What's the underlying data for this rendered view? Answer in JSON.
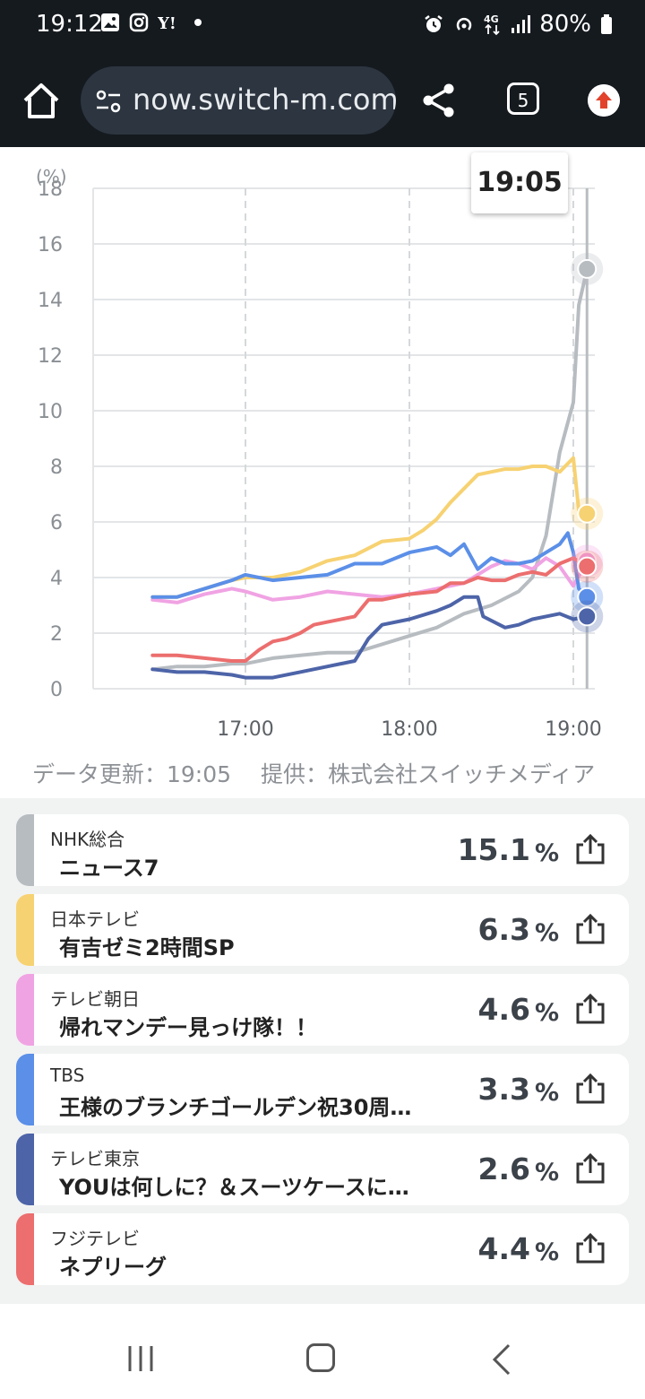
{
  "status_bar": {
    "time": "19:12",
    "left_icons": [
      "gallery-icon",
      "instagram-icon",
      "yahoo-icon",
      "dot-icon"
    ],
    "right_icons": [
      "alarm-icon",
      "hotspot-icon",
      "4g-icon",
      "signal-icon"
    ],
    "battery": "80%"
  },
  "browser": {
    "url": "now.switch-m.com",
    "tab_count": "5"
  },
  "chart": {
    "tooltip_time": "19:05",
    "y_unit": "(%)",
    "y_ticks": [
      "18",
      "16",
      "14",
      "12",
      "10",
      "8",
      "6",
      "4",
      "2",
      "0"
    ],
    "x_ticks": [
      "17:00",
      "18:00",
      "19:00"
    ]
  },
  "chart_data": {
    "type": "line",
    "y_unit": "(%)",
    "ylim": [
      0,
      18
    ],
    "x_ticks": [
      "17:00",
      "18:00",
      "19:00"
    ],
    "grid": true,
    "note_time": "19:05",
    "series": [
      {
        "name": "NHK総合",
        "color": "#b7bcc1",
        "points": [
          [
            "16:26",
            0.7
          ],
          [
            "16:35",
            0.8
          ],
          [
            "16:45",
            0.8
          ],
          [
            "16:55",
            0.9
          ],
          [
            "17:00",
            0.9
          ],
          [
            "17:10",
            1.1
          ],
          [
            "17:20",
            1.2
          ],
          [
            "17:30",
            1.3
          ],
          [
            "17:40",
            1.3
          ],
          [
            "17:50",
            1.6
          ],
          [
            "18:00",
            1.9
          ],
          [
            "18:10",
            2.2
          ],
          [
            "18:20",
            2.7
          ],
          [
            "18:30",
            3.0
          ],
          [
            "18:40",
            3.5
          ],
          [
            "18:45",
            4.0
          ],
          [
            "18:50",
            5.5
          ],
          [
            "18:55",
            8.5
          ],
          [
            "19:00",
            10.3
          ],
          [
            "19:02",
            13.8
          ],
          [
            "19:05",
            15.1
          ]
        ]
      },
      {
        "name": "日本テレビ",
        "color": "#f7d272",
        "points": [
          [
            "16:26",
            3.3
          ],
          [
            "16:35",
            3.3
          ],
          [
            "16:45",
            3.6
          ],
          [
            "16:55",
            3.9
          ],
          [
            "17:00",
            4.0
          ],
          [
            "17:10",
            4.0
          ],
          [
            "17:20",
            4.2
          ],
          [
            "17:30",
            4.6
          ],
          [
            "17:40",
            4.8
          ],
          [
            "17:50",
            5.3
          ],
          [
            "18:00",
            5.4
          ],
          [
            "18:05",
            5.7
          ],
          [
            "18:10",
            6.1
          ],
          [
            "18:15",
            6.7
          ],
          [
            "18:20",
            7.2
          ],
          [
            "18:25",
            7.7
          ],
          [
            "18:30",
            7.8
          ],
          [
            "18:35",
            7.9
          ],
          [
            "18:40",
            7.9
          ],
          [
            "18:45",
            8.0
          ],
          [
            "18:50",
            8.0
          ],
          [
            "18:55",
            7.8
          ],
          [
            "19:00",
            8.3
          ],
          [
            "19:02",
            6.4
          ],
          [
            "19:05",
            6.3
          ]
        ]
      },
      {
        "name": "テレビ朝日",
        "color": "#f0a3e3",
        "points": [
          [
            "16:26",
            3.2
          ],
          [
            "16:35",
            3.1
          ],
          [
            "16:45",
            3.4
          ],
          [
            "16:55",
            3.6
          ],
          [
            "17:00",
            3.5
          ],
          [
            "17:10",
            3.2
          ],
          [
            "17:20",
            3.3
          ],
          [
            "17:30",
            3.5
          ],
          [
            "17:40",
            3.4
          ],
          [
            "17:50",
            3.3
          ],
          [
            "18:00",
            3.4
          ],
          [
            "18:10",
            3.6
          ],
          [
            "18:20",
            3.8
          ],
          [
            "18:30",
            4.4
          ],
          [
            "18:35",
            4.6
          ],
          [
            "18:40",
            4.5
          ],
          [
            "18:45",
            4.3
          ],
          [
            "18:50",
            4.7
          ],
          [
            "18:55",
            4.4
          ],
          [
            "19:00",
            3.7
          ],
          [
            "19:05",
            4.6
          ]
        ]
      },
      {
        "name": "TBS",
        "color": "#5b8fe8",
        "points": [
          [
            "16:26",
            3.3
          ],
          [
            "16:35",
            3.3
          ],
          [
            "16:45",
            3.6
          ],
          [
            "16:55",
            3.9
          ],
          [
            "17:00",
            4.1
          ],
          [
            "17:10",
            3.9
          ],
          [
            "17:20",
            4.0
          ],
          [
            "17:30",
            4.1
          ],
          [
            "17:40",
            4.5
          ],
          [
            "17:50",
            4.5
          ],
          [
            "18:00",
            4.9
          ],
          [
            "18:10",
            5.1
          ],
          [
            "18:15",
            4.8
          ],
          [
            "18:20",
            5.2
          ],
          [
            "18:25",
            4.3
          ],
          [
            "18:30",
            4.7
          ],
          [
            "18:35",
            4.5
          ],
          [
            "18:40",
            4.5
          ],
          [
            "18:45",
            4.6
          ],
          [
            "18:50",
            4.9
          ],
          [
            "18:55",
            5.2
          ],
          [
            "18:58",
            5.6
          ],
          [
            "19:00",
            4.9
          ],
          [
            "19:02",
            3.6
          ],
          [
            "19:05",
            3.3
          ]
        ]
      },
      {
        "name": "テレビ東京",
        "color": "#4d64a8",
        "points": [
          [
            "16:26",
            0.7
          ],
          [
            "16:35",
            0.6
          ],
          [
            "16:45",
            0.6
          ],
          [
            "16:55",
            0.5
          ],
          [
            "17:00",
            0.4
          ],
          [
            "17:10",
            0.4
          ],
          [
            "17:20",
            0.6
          ],
          [
            "17:30",
            0.8
          ],
          [
            "17:40",
            1.0
          ],
          [
            "17:45",
            1.8
          ],
          [
            "17:50",
            2.3
          ],
          [
            "18:00",
            2.5
          ],
          [
            "18:10",
            2.8
          ],
          [
            "18:15",
            3.0
          ],
          [
            "18:20",
            3.3
          ],
          [
            "18:25",
            3.3
          ],
          [
            "18:27",
            2.6
          ],
          [
            "18:35",
            2.2
          ],
          [
            "18:40",
            2.3
          ],
          [
            "18:45",
            2.5
          ],
          [
            "18:50",
            2.6
          ],
          [
            "18:55",
            2.7
          ],
          [
            "19:00",
            2.5
          ],
          [
            "19:05",
            2.6
          ]
        ]
      },
      {
        "name": "フジテレビ",
        "color": "#ec6e6e",
        "points": [
          [
            "16:26",
            1.2
          ],
          [
            "16:35",
            1.2
          ],
          [
            "16:45",
            1.1
          ],
          [
            "16:55",
            1.0
          ],
          [
            "17:00",
            1.0
          ],
          [
            "17:05",
            1.4
          ],
          [
            "17:10",
            1.7
          ],
          [
            "17:15",
            1.8
          ],
          [
            "17:20",
            2.0
          ],
          [
            "17:25",
            2.3
          ],
          [
            "17:30",
            2.4
          ],
          [
            "17:40",
            2.6
          ],
          [
            "17:45",
            3.2
          ],
          [
            "17:50",
            3.2
          ],
          [
            "18:00",
            3.4
          ],
          [
            "18:10",
            3.5
          ],
          [
            "18:15",
            3.8
          ],
          [
            "18:20",
            3.8
          ],
          [
            "18:25",
            4.0
          ],
          [
            "18:30",
            3.9
          ],
          [
            "18:35",
            3.9
          ],
          [
            "18:40",
            4.1
          ],
          [
            "18:45",
            4.2
          ],
          [
            "18:50",
            4.1
          ],
          [
            "18:55",
            4.5
          ],
          [
            "19:00",
            4.7
          ],
          [
            "19:05",
            4.4
          ]
        ]
      }
    ]
  },
  "footnote": "データ更新：19:05　 提供：株式会社スイッチメディア",
  "programs": [
    {
      "station": "NHK総合",
      "program": "ニュース7",
      "rate": "15.1",
      "unit": "%",
      "color": "#b7bcc1"
    },
    {
      "station": "日本テレビ",
      "program": "有吉ゼミ2時間SP",
      "rate": "6.3",
      "unit": "%",
      "color": "#f7d272"
    },
    {
      "station": "テレビ朝日",
      "program": "帰れマンデー見っけ隊！！",
      "rate": "4.6",
      "unit": "%",
      "color": "#f0a3e3"
    },
    {
      "station": "TBS",
      "program": "王様のブランチゴールデン祝30周年…",
      "rate": "3.3",
      "unit": "%",
      "color": "#5b8fe8"
    },
    {
      "station": "テレビ東京",
      "program": "YOUは何しに？＆スーツケースに＆…",
      "rate": "2.6",
      "unit": "%",
      "color": "#4d64a8"
    },
    {
      "station": "フジテレビ",
      "program": "ネプリーグ",
      "rate": "4.4",
      "unit": "%",
      "color": "#ec6e6e"
    }
  ]
}
